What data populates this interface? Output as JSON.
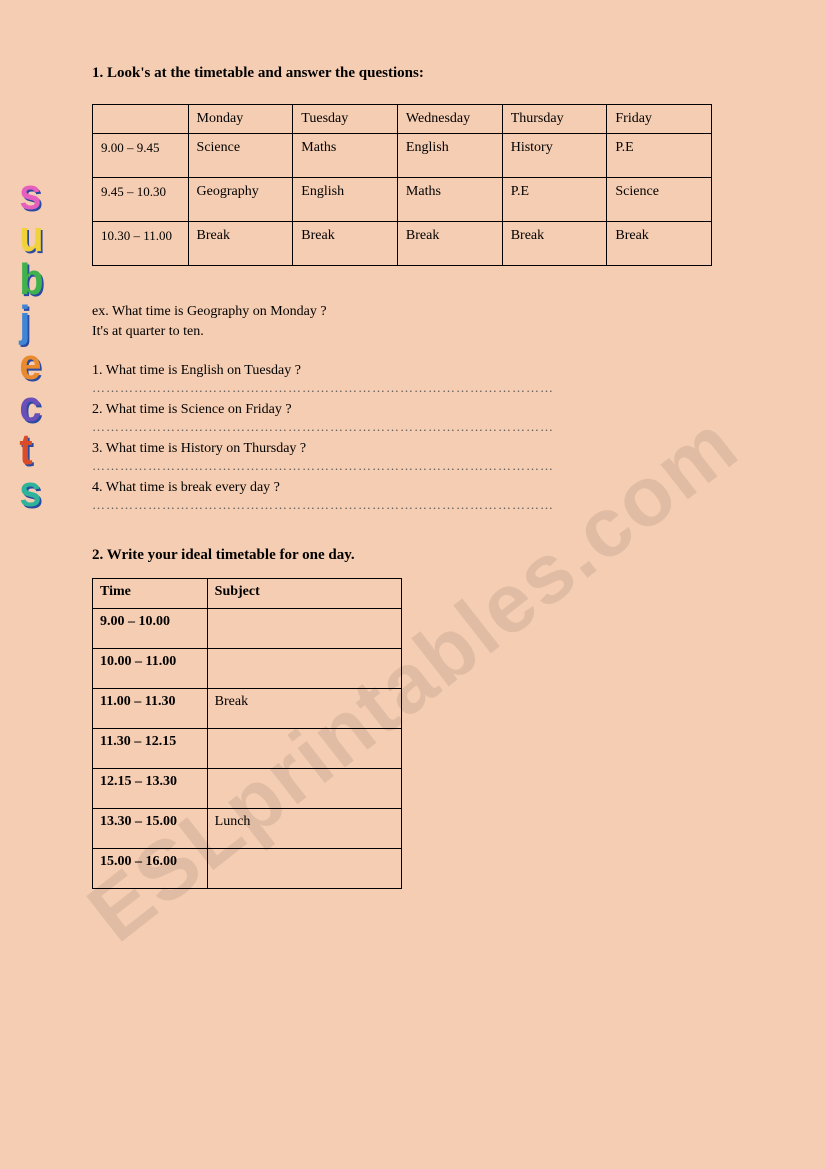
{
  "section1": {
    "title": "1.  Look's at the timetable and answer the questions:",
    "timetable": {
      "header": [
        "",
        "Monday",
        "Tuesday",
        "Wednesday",
        "Thursday",
        "Friday"
      ],
      "rows": [
        {
          "time": "9.00 – 9.45",
          "cells": [
            "Science",
            "Maths",
            "English",
            "History",
            "P.E"
          ]
        },
        {
          "time": "9.45 – 10.30",
          "cells": [
            "Geography",
            "English",
            "Maths",
            "P.E",
            "Science"
          ]
        },
        {
          "time": "10.30 – 11.00",
          "cells": [
            "Break",
            "Break",
            "Break",
            "Break",
            "Break"
          ]
        }
      ]
    },
    "example": {
      "line1": "ex. What time is Geography on Monday ?",
      "line2": "It's at quarter to ten."
    },
    "questions": [
      "1. What time is English on Tuesday ?",
      "2. What time is Science on Friday ?",
      "3. What time is History on Thursday ?",
      "4. What time is break every day ?"
    ],
    "dots": "………………………………………………………………………………………"
  },
  "section2": {
    "title": "2.  Write your ideal timetable for one day.",
    "columns": [
      "Time",
      "Subject"
    ],
    "rows": [
      {
        "time": "9.00 – 10.00",
        "subject": ""
      },
      {
        "time": "10.00 – 11.00",
        "subject": ""
      },
      {
        "time": "11.00 – 11.30",
        "subject": "Break"
      },
      {
        "time": "11.30 – 12.15",
        "subject": ""
      },
      {
        "time": "12.15 – 13.30",
        "subject": ""
      },
      {
        "time": "13.30 – 15.00",
        "subject": "Lunch"
      },
      {
        "time": "15.00 – 16.00",
        "subject": ""
      }
    ]
  },
  "wordart": {
    "letters": [
      "s",
      "u",
      "b",
      "j",
      "e",
      "c",
      "t",
      "s"
    ],
    "classes": [
      "c-pink",
      "c-yellow",
      "c-green",
      "c-blue",
      "c-orange",
      "c-purple",
      "c-red",
      "c-teal"
    ]
  },
  "watermark": "ESLprintables.com",
  "colors": {
    "background": "#f5cdb2",
    "border": "#000000",
    "watermark": "rgba(0,0,0,0.08)",
    "wordart_shadow": "#2a4aa0"
  }
}
